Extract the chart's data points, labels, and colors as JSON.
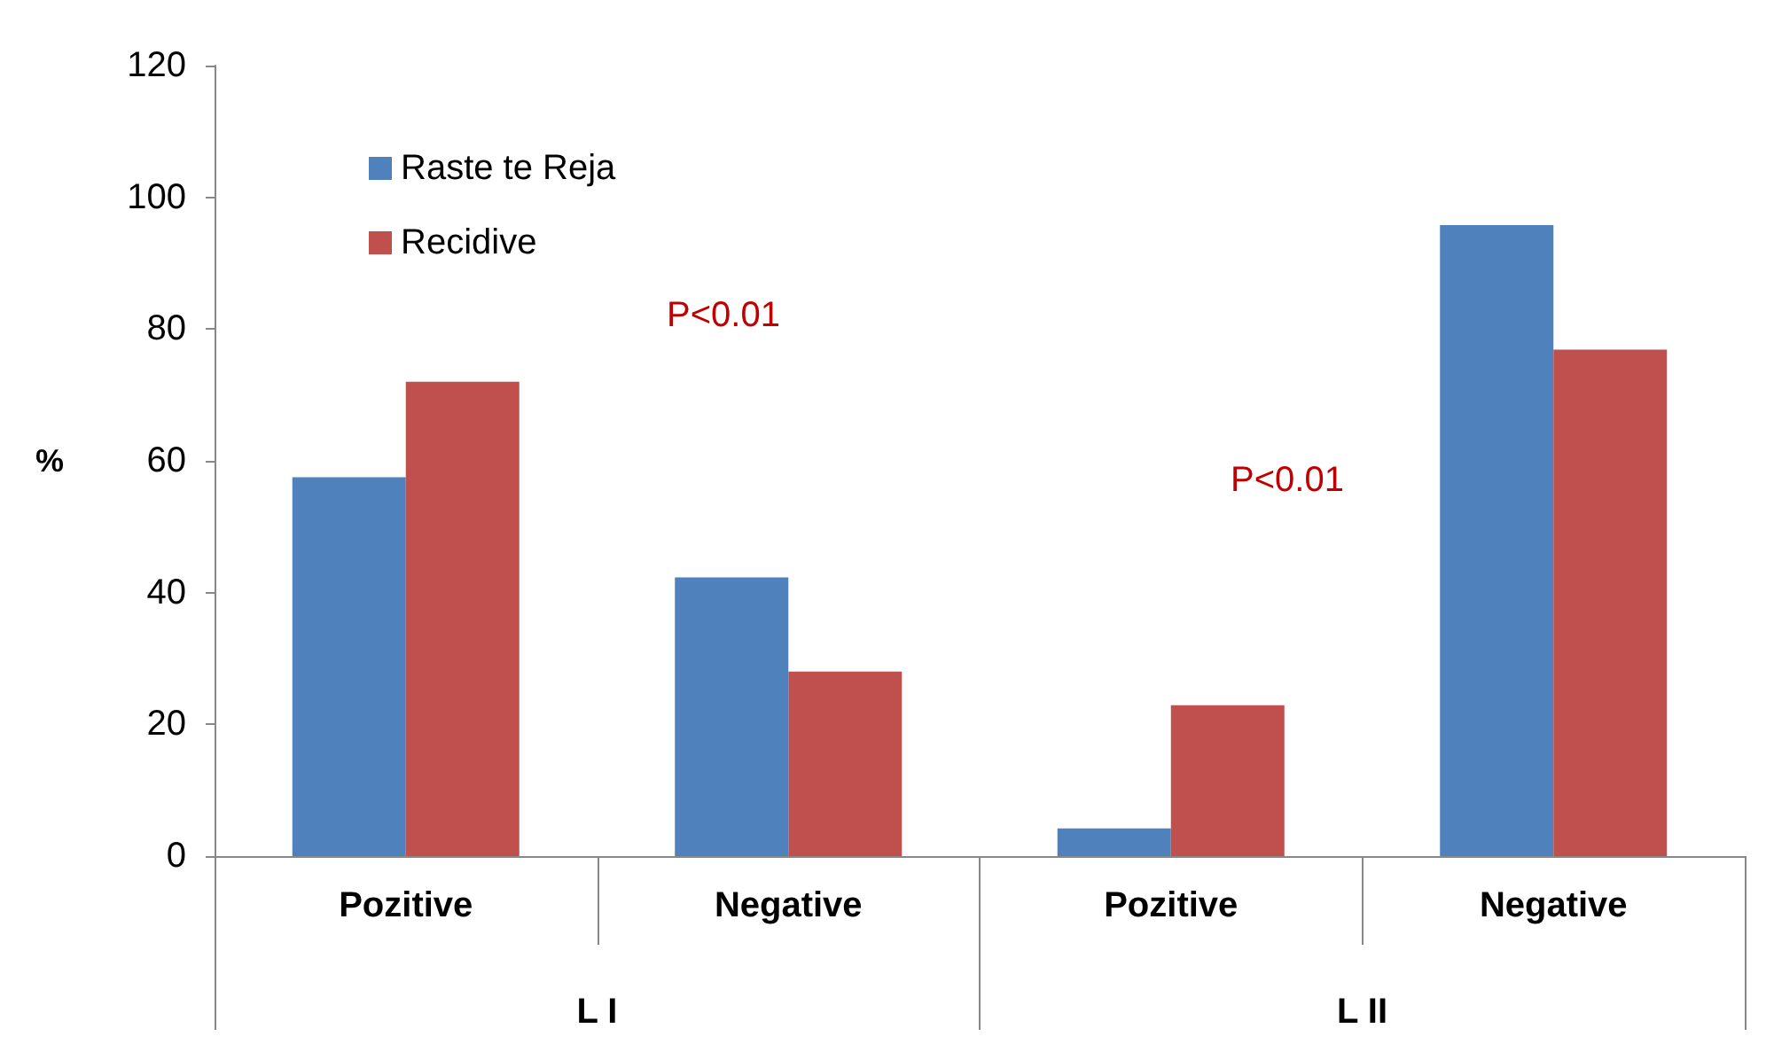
{
  "chart_data": {
    "type": "bar",
    "ylabel": "%",
    "categories": [
      "Pozitive",
      "Negative",
      "Pozitive",
      "Negative"
    ],
    "series": [
      {
        "name": "Raste te Reja",
        "color": "#4f81bd",
        "values": [
          57.5,
          42.3,
          4.2,
          95.8
        ]
      },
      {
        "name": "Recidive",
        "color": "#c0504d",
        "values": [
          72,
          28,
          22.9,
          76.9
        ]
      }
    ],
    "ylim": [
      0,
      120
    ],
    "yticks": [
      0,
      20,
      40,
      60,
      80,
      100,
      120
    ],
    "grid": false,
    "legend": "top left",
    "annotations": [
      "P<0.01",
      "P<0.01",
      "L I",
      "L II"
    ]
  }
}
